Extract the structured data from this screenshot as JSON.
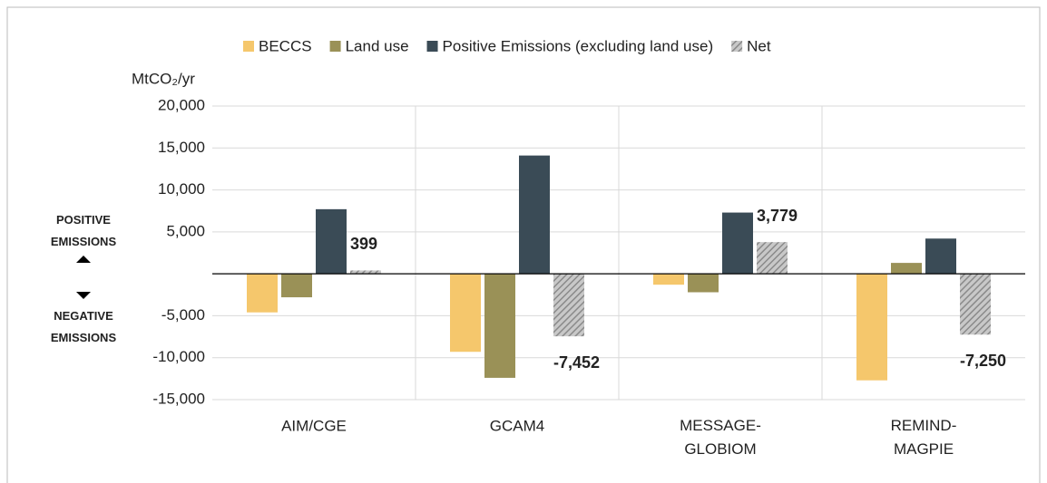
{
  "chart_data": {
    "type": "bar",
    "y_label": "MtCO₂/yr",
    "annotations": {
      "positive": "POSITIVE EMISSIONS",
      "negative": "NEGATIVE EMISSIONS"
    },
    "categories": [
      "AIM/CGE",
      "GCAM4",
      "MESSAGE-GLOBIOM",
      "REMIND-MAGPIE"
    ],
    "series": [
      {
        "name": "BECCS",
        "color": "#f5c76c",
        "values": [
          -4600,
          -9300,
          -1300,
          -12700
        ]
      },
      {
        "name": "Land use",
        "color": "#9a9157",
        "values": [
          -2800,
          -12400,
          -2200,
          1300
        ]
      },
      {
        "name": "Positive Emissions (excluding land use)",
        "color": "#3a4b56",
        "values": [
          7700,
          14100,
          7300,
          4200
        ]
      },
      {
        "name": "Net",
        "color": "#9a9a9a",
        "pattern": "hatch",
        "values": [
          399,
          -7452,
          3779,
          -7250
        ],
        "value_labels": [
          "399",
          "-7,452",
          "3,779",
          "-7,250"
        ]
      }
    ],
    "ylim": [
      -15000,
      20000
    ],
    "yticks": [
      {
        "value": -15000,
        "label": "-15,000"
      },
      {
        "value": -10000,
        "label": "-10,000"
      },
      {
        "value": -5000,
        "label": "-5,000"
      },
      {
        "value": 5000,
        "label": "5,000"
      },
      {
        "value": 10000,
        "label": "10,000"
      },
      {
        "value": 15000,
        "label": "15,000"
      },
      {
        "value": 20000,
        "label": "20,000"
      }
    ],
    "grid": true
  }
}
